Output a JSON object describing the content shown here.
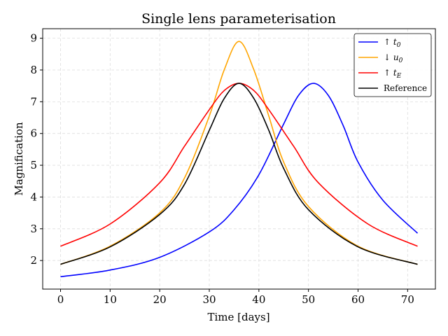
{
  "chart_data": {
    "type": "line",
    "title": "Single lens parameterisation",
    "xlabel": "Time [days]",
    "ylabel": "Magnification",
    "xlim": [
      -3.6,
      75.6
    ],
    "ylim": [
      1.1,
      9.3
    ],
    "xticks": [
      "0",
      "10",
      "20",
      "30",
      "40",
      "50",
      "60",
      "70"
    ],
    "yticks": [
      "2",
      "3",
      "4",
      "5",
      "6",
      "7",
      "8",
      "9"
    ],
    "grid": true,
    "legend_position": "top-right",
    "series": [
      {
        "name": "↑ t",
        "name_sub": "0",
        "color": "#0000ff",
        "x": [
          0,
          10,
          20,
          30,
          35,
          40,
          45,
          48,
          51,
          54,
          57,
          60,
          65,
          72
        ],
        "y": [
          1.49,
          1.7,
          2.1,
          2.9,
          3.6,
          4.7,
          6.3,
          7.2,
          7.58,
          7.2,
          6.25,
          5.1,
          3.9,
          2.86
        ]
      },
      {
        "name": "↓ u",
        "name_sub": "0",
        "color": "#ffa500",
        "x": [
          0,
          10,
          20,
          25,
          30,
          33,
          36,
          39,
          42,
          45,
          50,
          60,
          72
        ],
        "y": [
          1.88,
          2.45,
          3.5,
          4.6,
          6.55,
          8.0,
          8.9,
          8.0,
          6.55,
          5.1,
          3.7,
          2.45,
          1.88
        ]
      },
      {
        "name": "↑ t",
        "name_sub": "E",
        "color": "#ff0000",
        "x": [
          0,
          10,
          20,
          25,
          30,
          33,
          36,
          39,
          42,
          47,
          52,
          62,
          72
        ],
        "y": [
          2.45,
          3.15,
          4.45,
          5.6,
          6.75,
          7.35,
          7.58,
          7.35,
          6.75,
          5.6,
          4.45,
          3.15,
          2.45
        ]
      },
      {
        "name": "Reference",
        "name_sub": "",
        "color": "#000000",
        "x": [
          0,
          10,
          20,
          25,
          30,
          33,
          36,
          39,
          42,
          45,
          50,
          60,
          72
        ],
        "y": [
          1.88,
          2.43,
          3.45,
          4.4,
          6.1,
          7.1,
          7.58,
          7.1,
          6.1,
          4.9,
          3.6,
          2.43,
          1.88
        ]
      }
    ]
  }
}
